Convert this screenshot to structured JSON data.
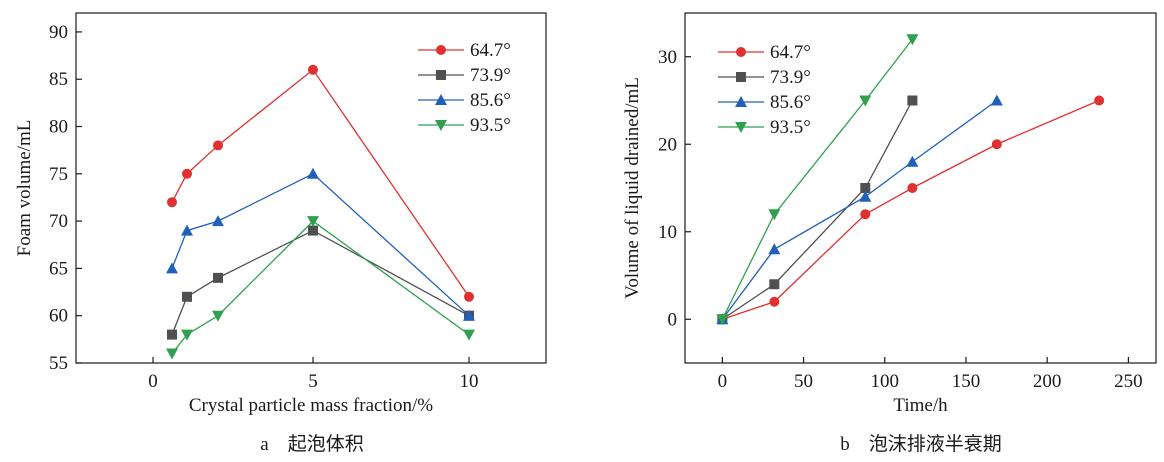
{
  "chart_data": [
    {
      "type": "line",
      "xlabel": "Crystal particle mass fraction/%",
      "ylabel": "Foam volume/mL",
      "caption": "a　起泡体积",
      "x_scale": "categorical-like (tick positions 0.5, 5, 10 at nonlinear spacing)",
      "xticks": [
        "0",
        "5",
        "10"
      ],
      "yticks": [
        "55",
        "60",
        "65",
        "70",
        "75",
        "80",
        "85",
        "90"
      ],
      "ylim": [
        55,
        92
      ],
      "legend_position": "top-right",
      "x": [
        0.5,
        1,
        2,
        5,
        10
      ],
      "series": [
        {
          "name": "64.7°",
          "color": "#e03030",
          "marker": "circle",
          "values": [
            72,
            75,
            78,
            86,
            62
          ]
        },
        {
          "name": "73.9°",
          "color": "#505050",
          "marker": "square",
          "values": [
            58,
            62,
            64,
            69,
            60
          ]
        },
        {
          "name": "85.6°",
          "color": "#2060b8",
          "marker": "triangle-up",
          "values": [
            65,
            69,
            70,
            75,
            60
          ]
        },
        {
          "name": "93.5°",
          "color": "#30a050",
          "marker": "triangle-down",
          "values": [
            56,
            58,
            60,
            70,
            58
          ]
        }
      ]
    },
    {
      "type": "line",
      "xlabel": "Time/h",
      "ylabel": "Volume of liquid drained/mL",
      "caption": "b　泡沫排液半衰期",
      "xticks": [
        "0",
        "50",
        "100",
        "150",
        "200",
        "250"
      ],
      "yticks": [
        "0",
        "10",
        "20",
        "30"
      ],
      "xlim": [
        -23,
        267
      ],
      "ylim": [
        -5,
        35
      ],
      "legend_position": "top-left",
      "series": [
        {
          "name": "64.7°",
          "color": "#e03030",
          "marker": "circle",
          "x": [
            0,
            32,
            88,
            117,
            169,
            232
          ],
          "values": [
            0,
            2,
            12,
            15,
            20,
            25
          ]
        },
        {
          "name": "73.9°",
          "color": "#505050",
          "marker": "square",
          "x": [
            0,
            32,
            88,
            117
          ],
          "values": [
            0,
            4,
            15,
            25
          ]
        },
        {
          "name": "85.6°",
          "color": "#2060b8",
          "marker": "triangle-up",
          "x": [
            0,
            32,
            88,
            117,
            169
          ],
          "values": [
            0,
            8,
            14,
            18,
            25
          ]
        },
        {
          "name": "93.5°",
          "color": "#30a050",
          "marker": "triangle-down",
          "x": [
            0,
            32,
            88,
            117
          ],
          "values": [
            0,
            12,
            25,
            32
          ]
        }
      ]
    }
  ]
}
